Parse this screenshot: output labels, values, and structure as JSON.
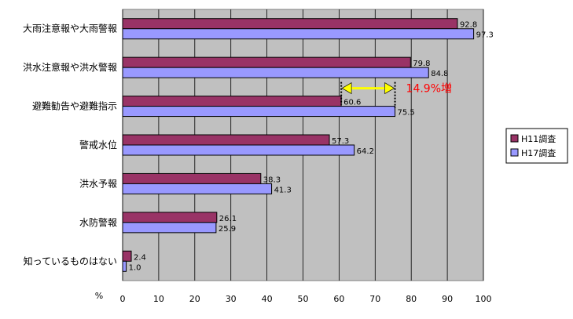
{
  "chart_data": {
    "type": "bar",
    "orientation": "horizontal",
    "categories": [
      "大雨注意報や大雨警報",
      "洪水注意報や洪水警報",
      "避難勧告や避難指示",
      "警戒水位",
      "洪水予報",
      "水防警報",
      "知っているものはない"
    ],
    "series": [
      {
        "name": "H11調査",
        "values": [
          92.8,
          79.8,
          60.6,
          57.3,
          38.3,
          26.1,
          2.4
        ],
        "color": "#993366"
      },
      {
        "name": "H17調査",
        "values": [
          97.3,
          84.8,
          75.5,
          64.2,
          41.3,
          25.9,
          1.0
        ],
        "color": "#9999ff"
      }
    ],
    "value_labels": [
      [
        "92.8",
        "97.3"
      ],
      [
        "79.8",
        "84.8"
      ],
      [
        "60.6",
        "75.5"
      ],
      [
        "57.3",
        "64.2"
      ],
      [
        "38.3",
        "41.3"
      ],
      [
        "26.1",
        "25.9"
      ],
      [
        "2.4",
        "1.0"
      ]
    ],
    "xlim": [
      0,
      100
    ],
    "xticks": [
      "0",
      "10",
      "20",
      "30",
      "40",
      "50",
      "60",
      "70",
      "80",
      "90",
      "100"
    ],
    "xlabel": "%",
    "grid": true,
    "plot_background": "#c0c0c0",
    "legend": {
      "position": "right",
      "labels": [
        "H11調査",
        "H17調査"
      ]
    },
    "annotation": {
      "text": "14.9%増",
      "from": 60.6,
      "to": 75.5,
      "category_index": 2,
      "arrow_color": "#ffff00",
      "text_color": "#ff0000"
    }
  }
}
